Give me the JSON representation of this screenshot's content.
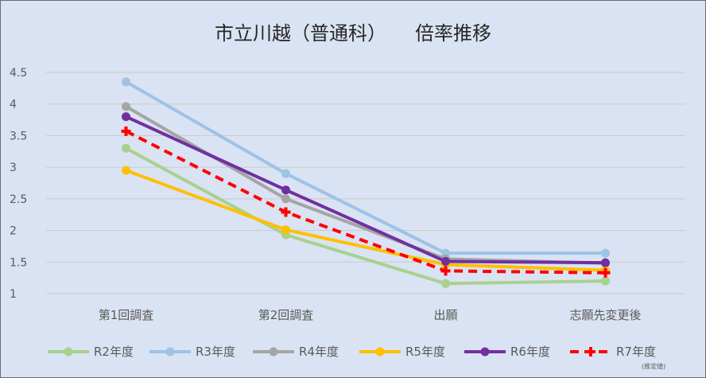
{
  "chart_data": {
    "type": "line",
    "title": "市立川越（普通科）　　倍率推移",
    "categories": [
      "第1回調査",
      "第2回調査",
      "出願",
      "志願先変更後"
    ],
    "yticks": [
      "4.5",
      "4",
      "3.5",
      "3",
      "2.5",
      "2",
      "1.5",
      "1"
    ],
    "ylim": [
      1,
      4.5
    ],
    "grid": true,
    "legend_position": "bottom",
    "series": [
      {
        "name": "R2年度",
        "values": [
          3.3,
          1.93,
          1.16,
          1.2
        ],
        "color": "#a9d18e",
        "style": "solid"
      },
      {
        "name": "R3年度",
        "values": [
          4.35,
          2.9,
          1.64,
          1.64
        ],
        "color": "#9dc3e6",
        "style": "solid"
      },
      {
        "name": "R4年度",
        "values": [
          3.96,
          2.5,
          1.55,
          1.48
        ],
        "color": "#a5a5a5",
        "style": "solid"
      },
      {
        "name": "R5年度",
        "values": [
          2.95,
          2.01,
          1.46,
          1.37
        ],
        "color": "#ffc000",
        "style": "solid"
      },
      {
        "name": "R6年度",
        "values": [
          3.8,
          2.64,
          1.51,
          1.49
        ],
        "color": "#7030a0",
        "style": "solid"
      },
      {
        "name": "R7年度",
        "values": [
          3.57,
          2.29,
          1.36,
          1.33
        ],
        "color": "#ff0000",
        "style": "dashed",
        "note": "(推定値)"
      }
    ]
  }
}
